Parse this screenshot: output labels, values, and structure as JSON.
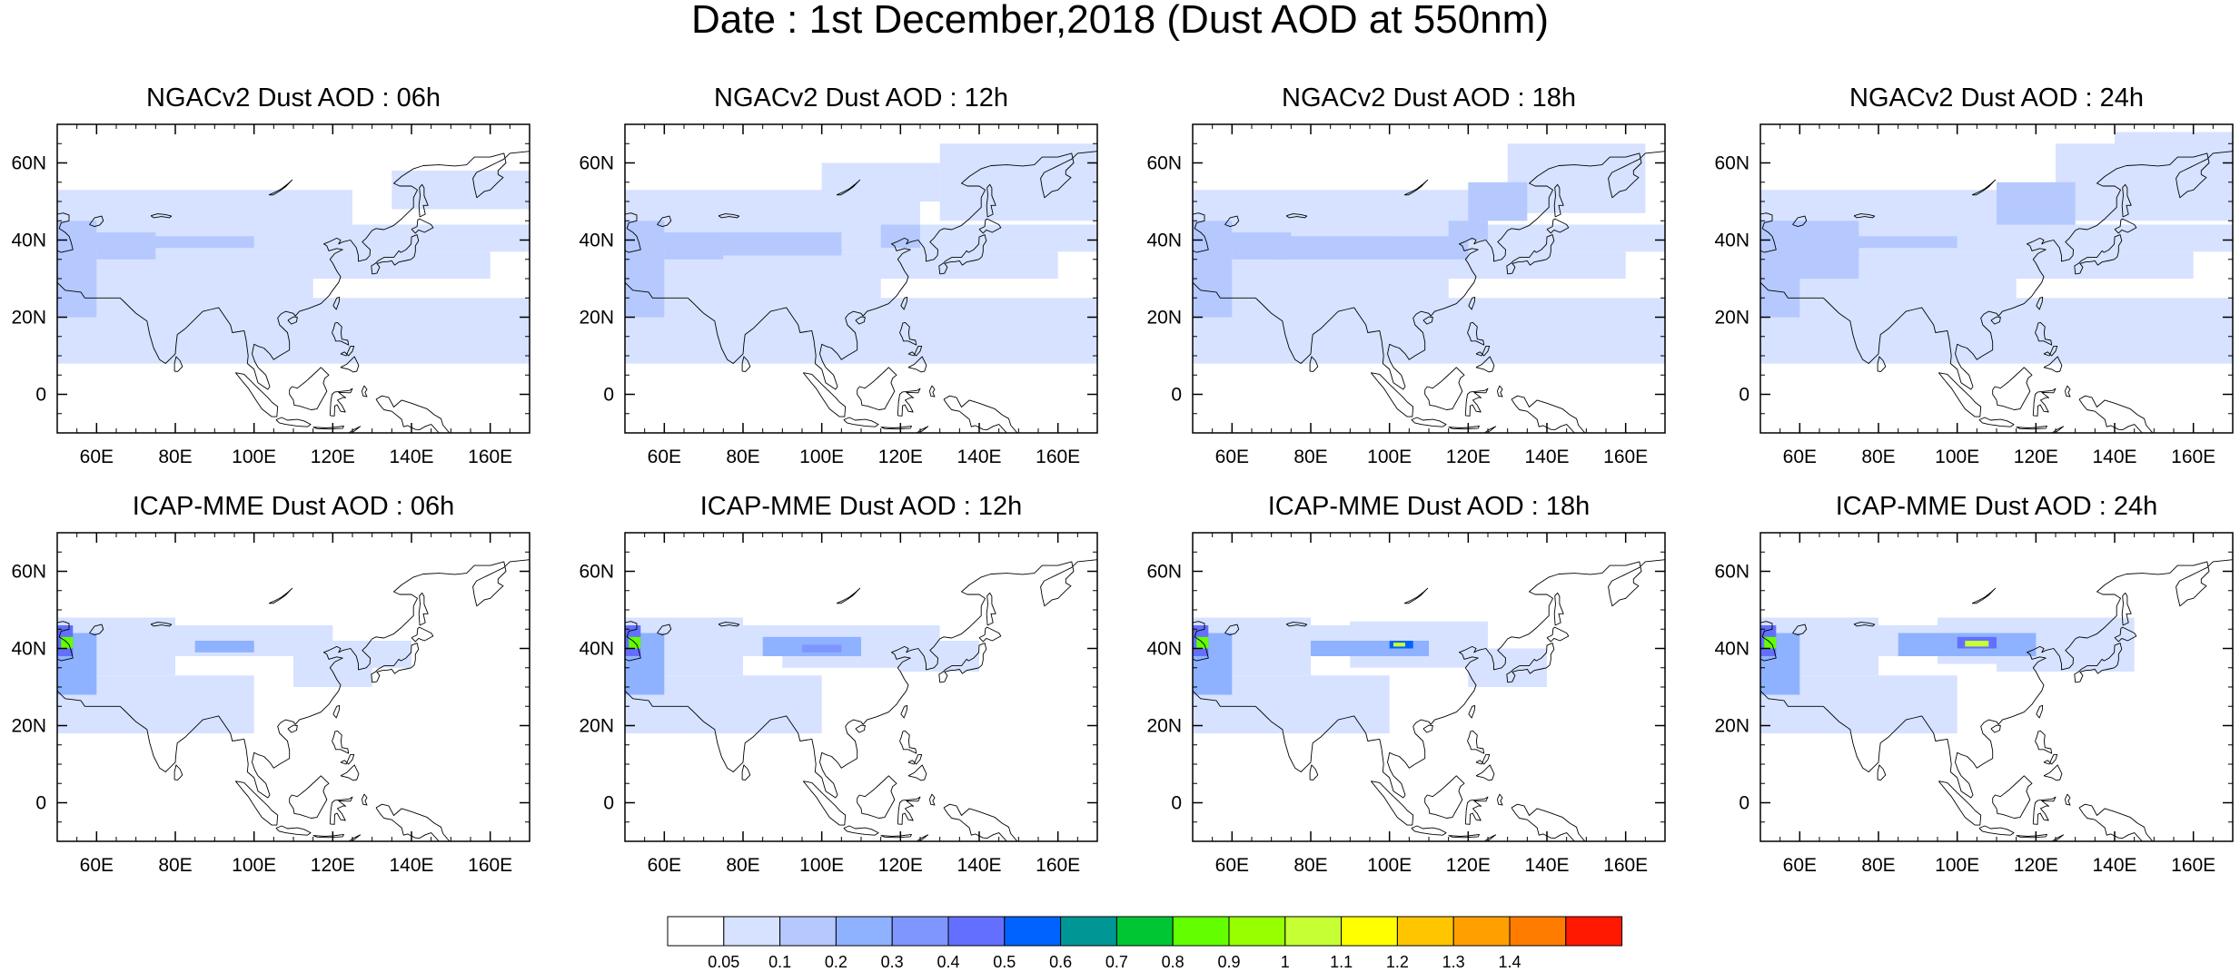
{
  "figure": {
    "title": "Date : 1st December,2018 (Dust AOD at 550nm)"
  },
  "map": {
    "lon_range": [
      50,
      170
    ],
    "lat_range": [
      -10,
      70
    ],
    "lon_ticks": [
      "60E",
      "80E",
      "100E",
      "120E",
      "140E",
      "160E"
    ],
    "lon_tick_values": [
      60,
      80,
      100,
      120,
      140,
      160
    ],
    "lat_ticks": [
      "0",
      "20N",
      "40N",
      "60N"
    ],
    "lat_tick_values": [
      0,
      20,
      40,
      60
    ],
    "base": "coastlines"
  },
  "panels": [
    {
      "title": "NGACv2 Dust AOD : 06h"
    },
    {
      "title": "NGACv2 Dust AOD : 12h"
    },
    {
      "title": "NGACv2 Dust AOD : 18h"
    },
    {
      "title": "NGACv2 Dust AOD : 24h"
    },
    {
      "title": "ICAP-MME Dust AOD : 06h"
    },
    {
      "title": "ICAP-MME Dust AOD : 12h"
    },
    {
      "title": "ICAP-MME Dust AOD : 18h"
    },
    {
      "title": "ICAP-MME Dust AOD : 24h"
    }
  ],
  "colorbar": {
    "labels": [
      "0.05",
      "0.1",
      "0.2",
      "0.3",
      "0.4",
      "0.5",
      "0.6",
      "0.7",
      "0.8",
      "0.9",
      "1",
      "1.1",
      "1.2",
      "1.3",
      "1.4"
    ],
    "colors": [
      "#ffffff",
      "#d6e2ff",
      "#b5c9ff",
      "#8eb2ff",
      "#7f96ff",
      "#6370ff",
      "#0063ff",
      "#009696",
      "#00c633",
      "#63ff00",
      "#96ff00",
      "#c6ff33",
      "#ffff00",
      "#ffc600",
      "#ffa000",
      "#ff7c00",
      "#ff1900"
    ]
  }
}
